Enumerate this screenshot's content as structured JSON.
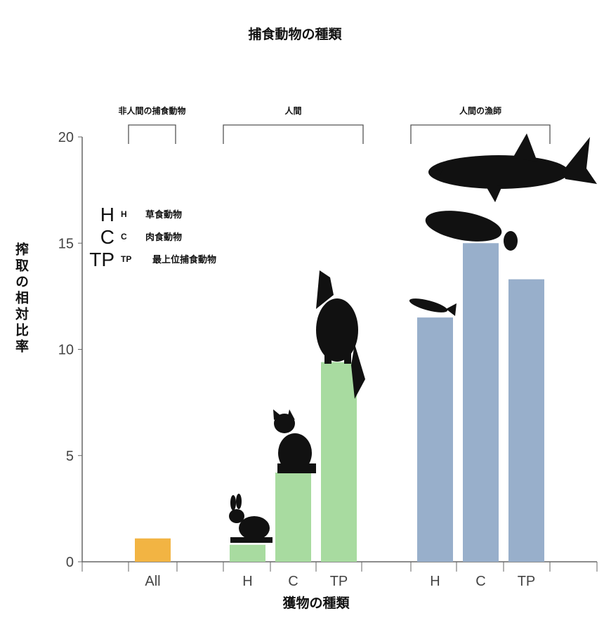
{
  "chart_data": {
    "type": "bar",
    "title": "捕食動物の種類",
    "xlabel": "獲物の種類",
    "ylabel": "搾取の相対比率",
    "ylim": [
      0,
      20
    ],
    "yticks": [
      "0",
      "5",
      "10",
      "15",
      "20"
    ],
    "groups": [
      {
        "label": "非人間の捕食動物",
        "color": "#f2b443",
        "categories": [
          "All"
        ],
        "values": [
          1.1
        ]
      },
      {
        "label": "人間",
        "color": "#a8dba0",
        "categories": [
          "H",
          "C",
          "TP"
        ],
        "values": [
          0.8,
          4.2,
          9.4
        ]
      },
      {
        "label": "人間の漁師",
        "color": "#98afcb",
        "categories": [
          "H",
          "C",
          "TP"
        ],
        "values": [
          11.5,
          15.0,
          13.3
        ]
      }
    ],
    "legend": [
      {
        "key": "H",
        "small": "H",
        "text": "草食動物"
      },
      {
        "key": "C",
        "small": "C",
        "text": "肉食動物"
      },
      {
        "key": "TP",
        "small": "TP",
        "text": "最上位捕食動物"
      }
    ],
    "legend_position": "top-left"
  }
}
